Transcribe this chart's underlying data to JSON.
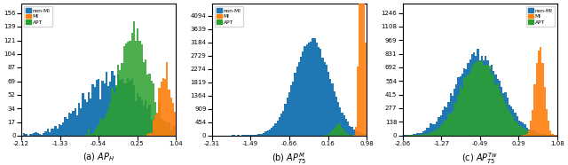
{
  "subplot_a": {
    "title": "(a) $AP_H$",
    "xlim": [
      -2.12,
      1.04
    ],
    "xticks": [
      -2.12,
      -1.33,
      -0.54,
      0.25,
      1.04
    ],
    "yticks": [
      0,
      17,
      34,
      52,
      69,
      87,
      104,
      121,
      139,
      156
    ],
    "ylim": [
      0,
      168
    ],
    "non_mi_mean": -0.25,
    "non_mi_std": 0.62,
    "non_mi_n": 2800,
    "mi_mean": 0.82,
    "mi_std": 0.12,
    "mi_n": 650,
    "apt_mean": 0.18,
    "apt_std": 0.32,
    "apt_n": 2600
  },
  "subplot_b": {
    "title": "(b) $AP_{T5}^M$",
    "xlim": [
      -2.31,
      0.98
    ],
    "xticks": [
      -2.31,
      -1.49,
      -0.66,
      0.16,
      0.98
    ],
    "yticks": [
      0,
      454,
      909,
      1364,
      1819,
      2274,
      2729,
      3184,
      3639,
      4094
    ],
    "ylim": [
      0,
      4500
    ],
    "non_mi_mean": -0.18,
    "non_mi_std": 0.38,
    "non_mi_n": 75000,
    "mi_mean": 0.88,
    "mi_std": 0.045,
    "mi_n": 38000,
    "apt_mean": 0.38,
    "apt_std": 0.09,
    "apt_n": 2200
  },
  "subplot_c": {
    "title": "(c) $AP_{T5}^{Tw}$",
    "xlim": [
      -2.06,
      1.08
    ],
    "xticks": [
      -2.06,
      -1.27,
      -0.49,
      0.29,
      1.08
    ],
    "yticks": [
      0,
      138,
      277,
      415,
      554,
      692,
      831,
      969,
      1108,
      1246
    ],
    "ylim": [
      0,
      1340
    ],
    "non_mi_mean": -0.52,
    "non_mi_std": 0.46,
    "non_mi_n": 24000,
    "mi_mean": 0.72,
    "mi_std": 0.09,
    "mi_n": 5200,
    "apt_mean": -0.48,
    "apt_std": 0.4,
    "apt_n": 19000
  },
  "colors": {
    "non_mi": "#1f77b4",
    "mi": "#ff7f0e",
    "apt": "#2ca02c"
  },
  "legend_labels": [
    "non-MI",
    "MI",
    "APT"
  ],
  "n_bins": 80,
  "figsize": [
    6.4,
    1.86
  ],
  "dpi": 100
}
